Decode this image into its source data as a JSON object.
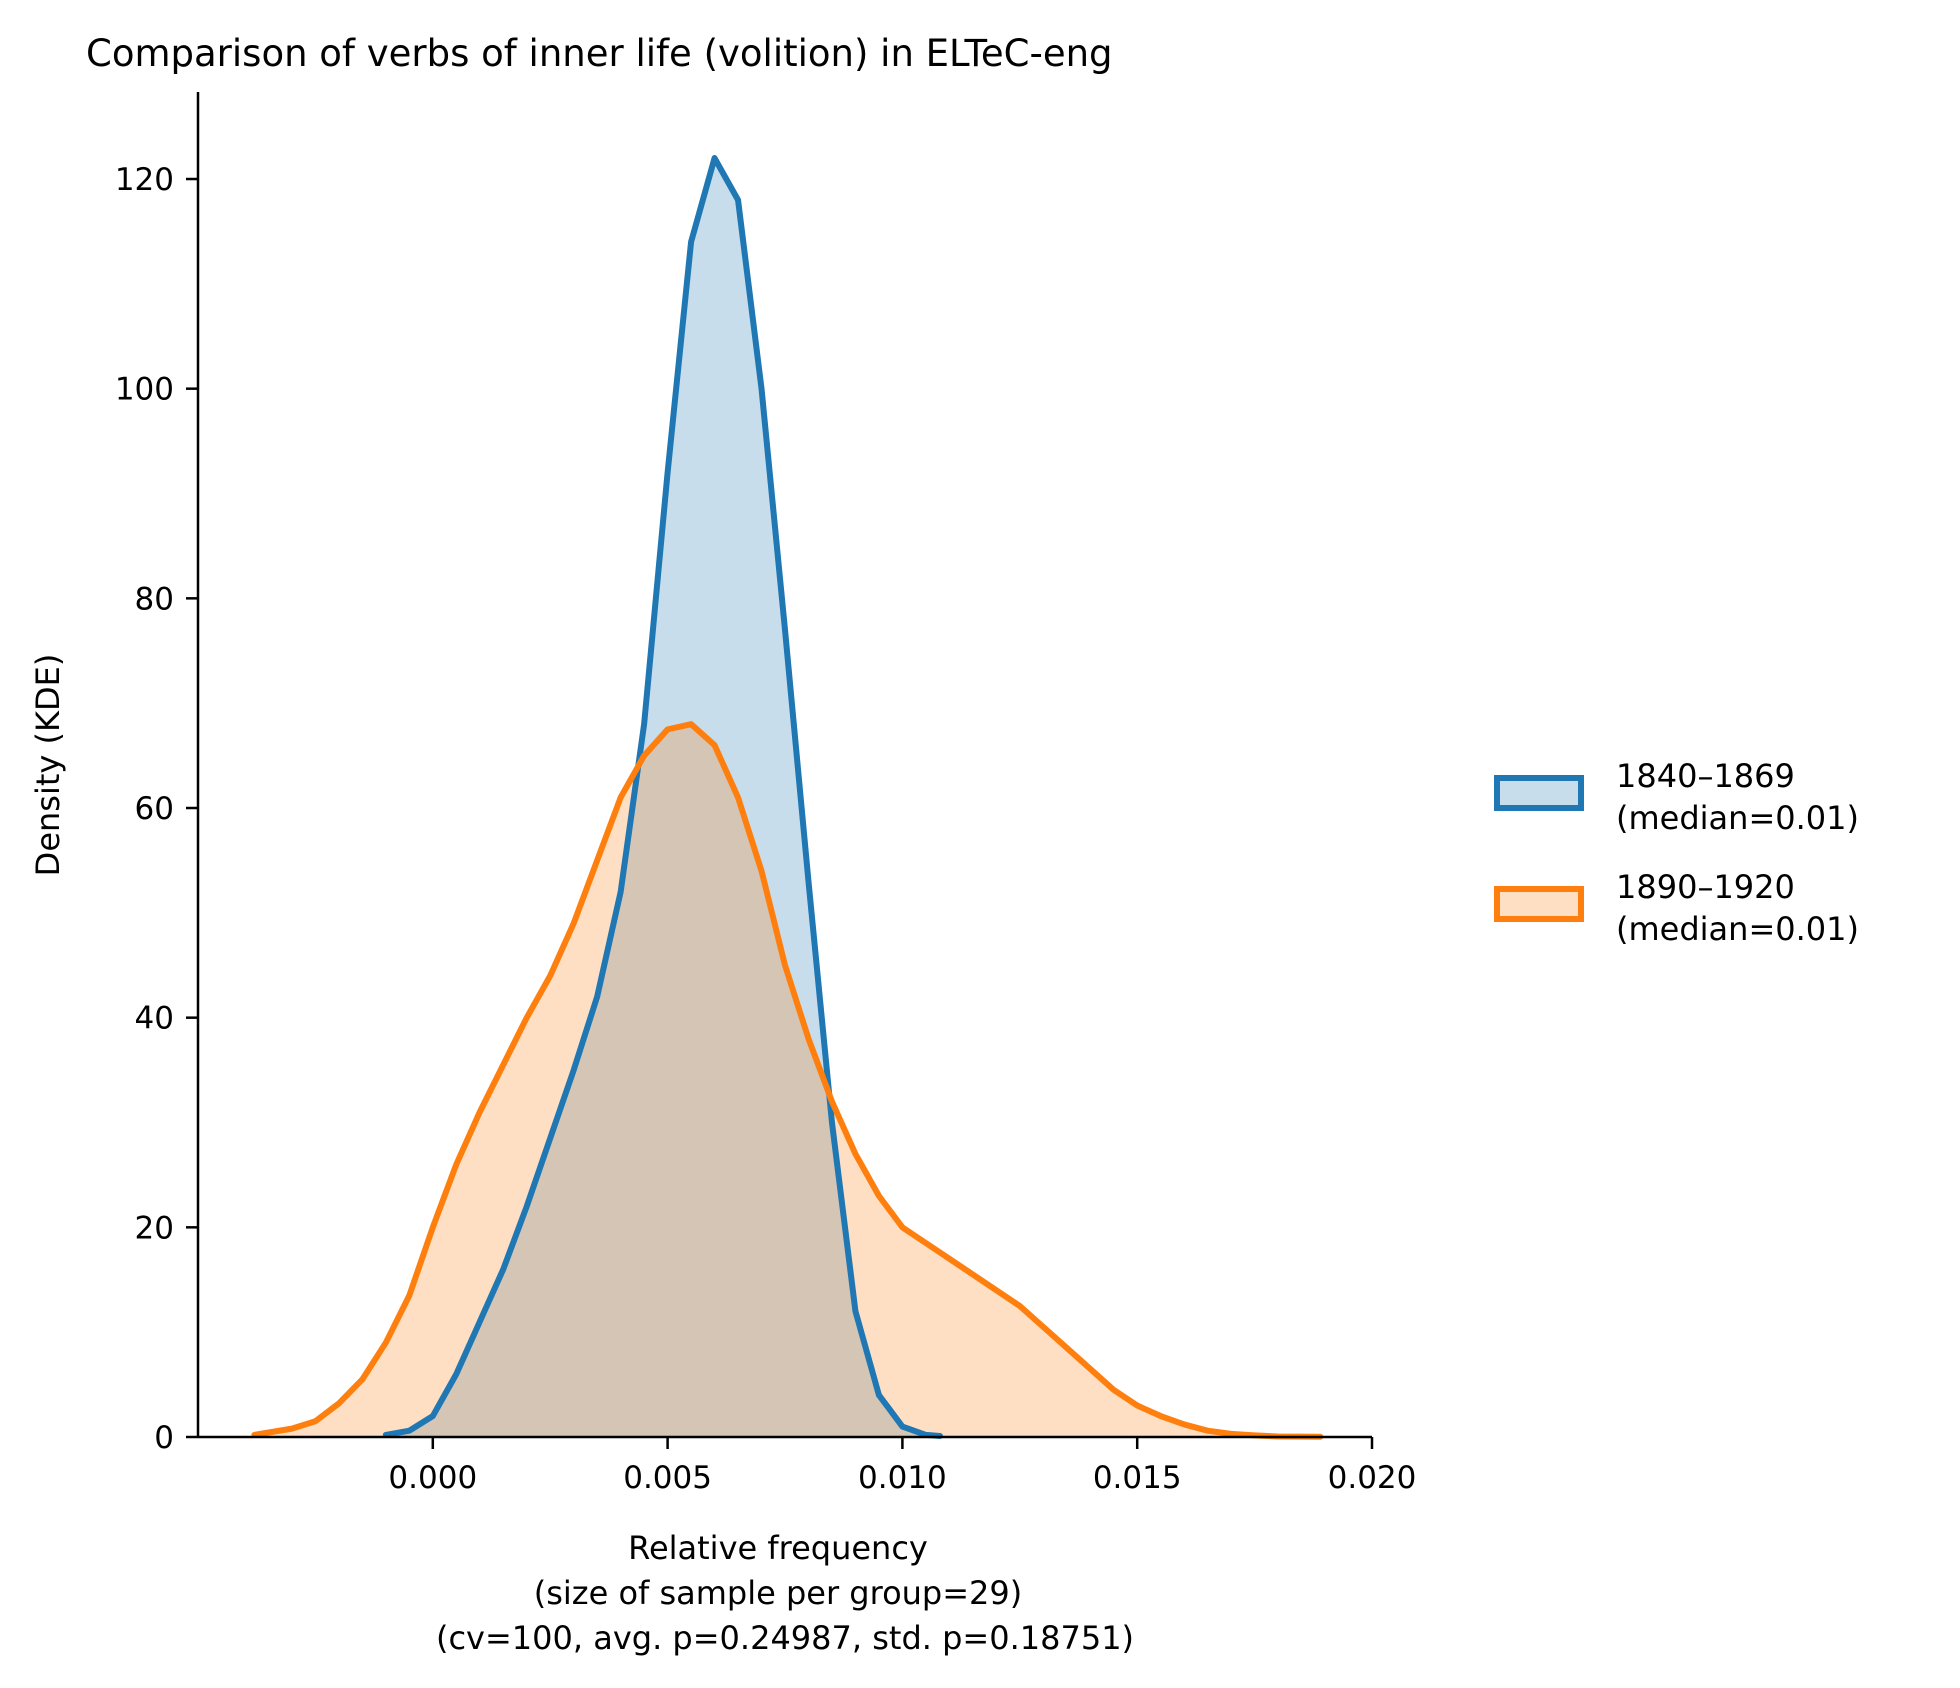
{
  "chart_data": {
    "type": "area",
    "title": "Comparison of verbs of inner life (volition) in ELTeC-eng",
    "xlabel": [
      "Relative frequency",
      "(size of sample per group=29)",
      "(cv=100, avg. p=0.24987, std. p=0.18751)"
    ],
    "ylabel": "Density (KDE)",
    "xlim": [
      -0.005,
      0.02
    ],
    "ylim": [
      0,
      128.3
    ],
    "xticks": [
      0.0,
      0.005,
      0.01,
      0.015,
      0.02
    ],
    "xtick_labels": [
      "0.000",
      "0.005",
      "0.010",
      "0.015",
      "0.020"
    ],
    "yticks": [
      0,
      20,
      40,
      60,
      80,
      100,
      120
    ],
    "ytick_labels": [
      "0",
      "20",
      "40",
      "60",
      "80",
      "100",
      "120"
    ],
    "grid": false,
    "legend_position": "right",
    "series": [
      {
        "name": "1840–1869\n(median=0.01)",
        "line_color": "#1f77b4",
        "fill_color": "#1f77b4",
        "fill_opacity": 0.25,
        "x": [
          -0.001,
          -0.0005,
          0.0,
          0.0005,
          0.001,
          0.0015,
          0.002,
          0.0025,
          0.003,
          0.0035,
          0.004,
          0.0045,
          0.005,
          0.0055,
          0.006,
          0.0065,
          0.007,
          0.0075,
          0.008,
          0.0085,
          0.009,
          0.0095,
          0.01,
          0.0105,
          0.0108
        ],
        "y": [
          0.2,
          0.6,
          2,
          6,
          11,
          16,
          22,
          28.5,
          35,
          42,
          52,
          68,
          92,
          114,
          122,
          118,
          100,
          77,
          53,
          30,
          12,
          4,
          1,
          0.2,
          0.1
        ]
      },
      {
        "name": "1890–1920\n(median=0.01)",
        "line_color": "#ff7f0e",
        "fill_color": "#ff7f0e",
        "fill_opacity": 0.25,
        "x": [
          -0.0038,
          -0.003,
          -0.0025,
          -0.002,
          -0.0015,
          -0.001,
          -0.0005,
          0.0,
          0.0005,
          0.001,
          0.0015,
          0.002,
          0.0025,
          0.003,
          0.0035,
          0.004,
          0.0045,
          0.005,
          0.0055,
          0.006,
          0.0065,
          0.007,
          0.0075,
          0.008,
          0.0085,
          0.009,
          0.0095,
          0.01,
          0.0105,
          0.011,
          0.0115,
          0.012,
          0.0125,
          0.013,
          0.0135,
          0.014,
          0.0145,
          0.015,
          0.0155,
          0.016,
          0.0165,
          0.017,
          0.0175,
          0.018,
          0.0189
        ],
        "y": [
          0.2,
          0.8,
          1.5,
          3.2,
          5.5,
          9,
          13.5,
          20,
          26,
          31,
          35.5,
          40,
          44,
          49,
          55,
          61,
          65,
          67.5,
          68,
          66,
          61,
          54,
          45,
          38,
          32,
          27,
          23,
          20,
          18.5,
          17,
          15.5,
          14,
          12.5,
          10.5,
          8.5,
          6.5,
          4.5,
          3,
          2,
          1.2,
          0.6,
          0.3,
          0.15,
          0.05,
          0.02
        ]
      }
    ]
  }
}
